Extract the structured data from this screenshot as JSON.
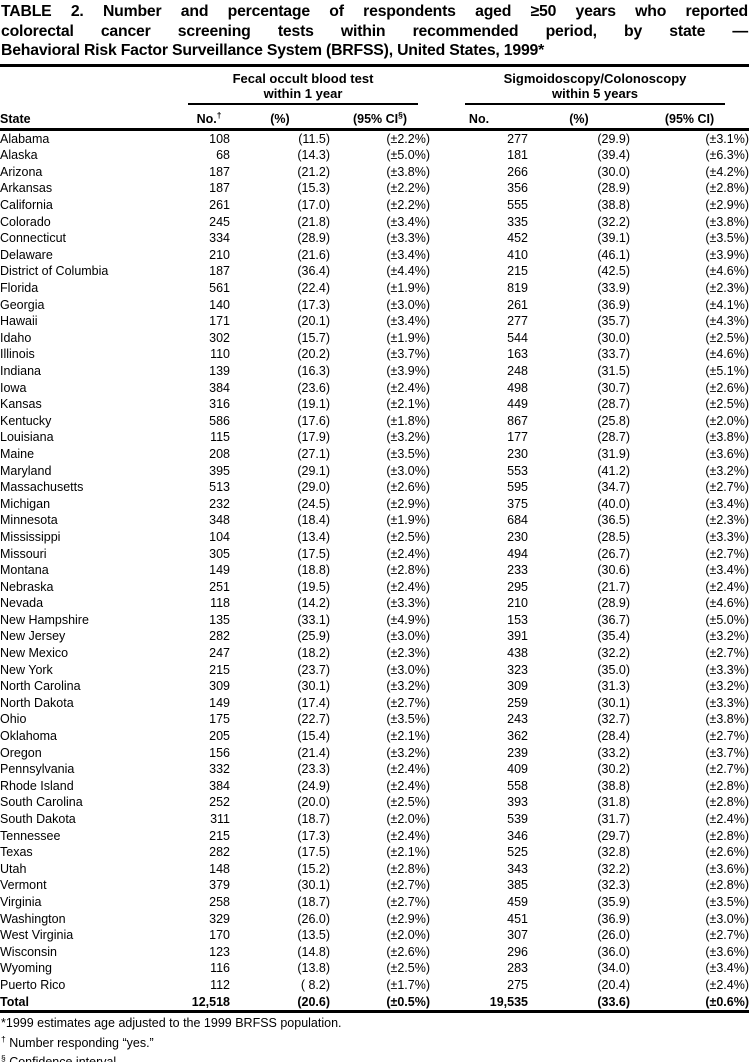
{
  "title": {
    "line1": "TABLE 2. Number and percentage of respondents aged ≥50 years who reported",
    "line2": "colorectal cancer screening tests within recommended period, by state —",
    "line3": "Behavioral Risk Factor Surveillance System (BRFSS), United States, 1999*"
  },
  "table": {
    "state_header": "State",
    "groups": [
      {
        "line1": "Fecal occult blood test",
        "line2": "within 1 year",
        "columns": [
          "No.†",
          "(%)",
          "(95% CI§)"
        ]
      },
      {
        "line1": "Sigmoidoscopy/Colonoscopy",
        "line2": "within 5 years",
        "columns": [
          "No.",
          "(%)",
          "(95% CI)"
        ]
      }
    ],
    "rows": [
      [
        "Alabama",
        "108",
        "(11.5)",
        "(±2.2%)",
        "277",
        "(29.9)",
        "(±3.1%)"
      ],
      [
        "Alaska",
        "68",
        "(14.3)",
        "(±5.0%)",
        "181",
        "(39.4)",
        "(±6.3%)"
      ],
      [
        "Arizona",
        "187",
        "(21.2)",
        "(±3.8%)",
        "266",
        "(30.0)",
        "(±4.2%)"
      ],
      [
        "Arkansas",
        "187",
        "(15.3)",
        "(±2.2%)",
        "356",
        "(28.9)",
        "(±2.8%)"
      ],
      [
        "California",
        "261",
        "(17.0)",
        "(±2.2%)",
        "555",
        "(38.8)",
        "(±2.9%)"
      ],
      [
        "Colorado",
        "245",
        "(21.8)",
        "(±3.4%)",
        "335",
        "(32.2)",
        "(±3.8%)"
      ],
      [
        "Connecticut",
        "334",
        "(28.9)",
        "(±3.3%)",
        "452",
        "(39.1)",
        "(±3.5%)"
      ],
      [
        "Delaware",
        "210",
        "(21.6)",
        "(±3.4%)",
        "410",
        "(46.1)",
        "(±3.9%)"
      ],
      [
        "District of Columbia",
        "187",
        "(36.4)",
        "(±4.4%)",
        "215",
        "(42.5)",
        "(±4.6%)"
      ],
      [
        "Florida",
        "561",
        "(22.4)",
        "(±1.9%)",
        "819",
        "(33.9)",
        "(±2.3%)"
      ],
      [
        "Georgia",
        "140",
        "(17.3)",
        "(±3.0%)",
        "261",
        "(36.9)",
        "(±4.1%)"
      ],
      [
        "Hawaii",
        "171",
        "(20.1)",
        "(±3.4%)",
        "277",
        "(35.7)",
        "(±4.3%)"
      ],
      [
        "Idaho",
        "302",
        "(15.7)",
        "(±1.9%)",
        "544",
        "(30.0)",
        "(±2.5%)"
      ],
      [
        "Illinois",
        "110",
        "(20.2)",
        "(±3.7%)",
        "163",
        "(33.7)",
        "(±4.6%)"
      ],
      [
        "Indiana",
        "139",
        "(16.3)",
        "(±3.9%)",
        "248",
        "(31.5)",
        "(±5.1%)"
      ],
      [
        "Iowa",
        "384",
        "(23.6)",
        "(±2.4%)",
        "498",
        "(30.7)",
        "(±2.6%)"
      ],
      [
        "Kansas",
        "316",
        "(19.1)",
        "(±2.1%)",
        "449",
        "(28.7)",
        "(±2.5%)"
      ],
      [
        "Kentucky",
        "586",
        "(17.6)",
        "(±1.8%)",
        "867",
        "(25.8)",
        "(±2.0%)"
      ],
      [
        "Louisiana",
        "115",
        "(17.9)",
        "(±3.2%)",
        "177",
        "(28.7)",
        "(±3.8%)"
      ],
      [
        "Maine",
        "208",
        "(27.1)",
        "(±3.5%)",
        "230",
        "(31.9)",
        "(±3.6%)"
      ],
      [
        "Maryland",
        "395",
        "(29.1)",
        "(±3.0%)",
        "553",
        "(41.2)",
        "(±3.2%)"
      ],
      [
        "Massachusetts",
        "513",
        "(29.0)",
        "(±2.6%)",
        "595",
        "(34.7)",
        "(±2.7%)"
      ],
      [
        "Michigan",
        "232",
        "(24.5)",
        "(±2.9%)",
        "375",
        "(40.0)",
        "(±3.4%)"
      ],
      [
        "Minnesota",
        "348",
        "(18.4)",
        "(±1.9%)",
        "684",
        "(36.5)",
        "(±2.3%)"
      ],
      [
        "Mississippi",
        "104",
        "(13.4)",
        "(±2.5%)",
        "230",
        "(28.5)",
        "(±3.3%)"
      ],
      [
        "Missouri",
        "305",
        "(17.5)",
        "(±2.4%)",
        "494",
        "(26.7)",
        "(±2.7%)"
      ],
      [
        "Montana",
        "149",
        "(18.8)",
        "(±2.8%)",
        "233",
        "(30.6)",
        "(±3.4%)"
      ],
      [
        "Nebraska",
        "251",
        "(19.5)",
        "(±2.4%)",
        "295",
        "(21.7)",
        "(±2.4%)"
      ],
      [
        "Nevada",
        "118",
        "(14.2)",
        "(±3.3%)",
        "210",
        "(28.9)",
        "(±4.6%)"
      ],
      [
        "New Hampshire",
        "135",
        "(33.1)",
        "(±4.9%)",
        "153",
        "(36.7)",
        "(±5.0%)"
      ],
      [
        "New Jersey",
        "282",
        "(25.9)",
        "(±3.0%)",
        "391",
        "(35.4)",
        "(±3.2%)"
      ],
      [
        "New Mexico",
        "247",
        "(18.2)",
        "(±2.3%)",
        "438",
        "(32.2)",
        "(±2.7%)"
      ],
      [
        "New York",
        "215",
        "(23.7)",
        "(±3.0%)",
        "323",
        "(35.0)",
        "(±3.3%)"
      ],
      [
        "North Carolina",
        "309",
        "(30.1)",
        "(±3.2%)",
        "309",
        "(31.3)",
        "(±3.2%)"
      ],
      [
        "North Dakota",
        "149",
        "(17.4)",
        "(±2.7%)",
        "259",
        "(30.1)",
        "(±3.3%)"
      ],
      [
        "Ohio",
        "175",
        "(22.7)",
        "(±3.5%)",
        "243",
        "(32.7)",
        "(±3.8%)"
      ],
      [
        "Oklahoma",
        "205",
        "(15.4)",
        "(±2.1%)",
        "362",
        "(28.4)",
        "(±2.7%)"
      ],
      [
        "Oregon",
        "156",
        "(21.4)",
        "(±3.2%)",
        "239",
        "(33.2)",
        "(±3.7%)"
      ],
      [
        "Pennsylvania",
        "332",
        "(23.3)",
        "(±2.4%)",
        "409",
        "(30.2)",
        "(±2.7%)"
      ],
      [
        "Rhode Island",
        "384",
        "(24.9)",
        "(±2.4%)",
        "558",
        "(38.8)",
        "(±2.8%)"
      ],
      [
        "South Carolina",
        "252",
        "(20.0)",
        "(±2.5%)",
        "393",
        "(31.8)",
        "(±2.8%)"
      ],
      [
        "South Dakota",
        "311",
        "(18.7)",
        "(±2.0%)",
        "539",
        "(31.7)",
        "(±2.4%)"
      ],
      [
        "Tennessee",
        "215",
        "(17.3)",
        "(±2.4%)",
        "346",
        "(29.7)",
        "(±2.8%)"
      ],
      [
        "Texas",
        "282",
        "(17.5)",
        "(±2.1%)",
        "525",
        "(32.8)",
        "(±2.6%)"
      ],
      [
        "Utah",
        "148",
        "(15.2)",
        "(±2.8%)",
        "343",
        "(32.2)",
        "(±3.6%)"
      ],
      [
        "Vermont",
        "379",
        "(30.1)",
        "(±2.7%)",
        "385",
        "(32.3)",
        "(±2.8%)"
      ],
      [
        "Virginia",
        "258",
        "(18.7)",
        "(±2.7%)",
        "459",
        "(35.9)",
        "(±3.5%)"
      ],
      [
        "Washington",
        "329",
        "(26.0)",
        "(±2.9%)",
        "451",
        "(36.9)",
        "(±3.0%)"
      ],
      [
        "West Virginia",
        "170",
        "(13.5)",
        "(±2.0%)",
        "307",
        "(26.0)",
        "(±2.7%)"
      ],
      [
        "Wisconsin",
        "123",
        "(14.8)",
        "(±2.6%)",
        "296",
        "(36.0)",
        "(±3.6%)"
      ],
      [
        "Wyoming",
        "116",
        "(13.8)",
        "(±2.5%)",
        "283",
        "(34.0)",
        "(±3.4%)"
      ],
      [
        "Puerto Rico",
        "112",
        "( 8.2)",
        "(±1.7%)",
        "275",
        "(20.4)",
        "(±2.4%)"
      ]
    ],
    "total": [
      "Total",
      "12,518",
      "(20.6)",
      "(±0.5%)",
      "19,535",
      "(33.6)",
      "(±0.6%)"
    ]
  },
  "footnotes": [
    "*1999 estimates age adjusted to the 1999 BRFSS population.",
    "† Number responding “yes.”",
    "§ Confidence interval."
  ]
}
